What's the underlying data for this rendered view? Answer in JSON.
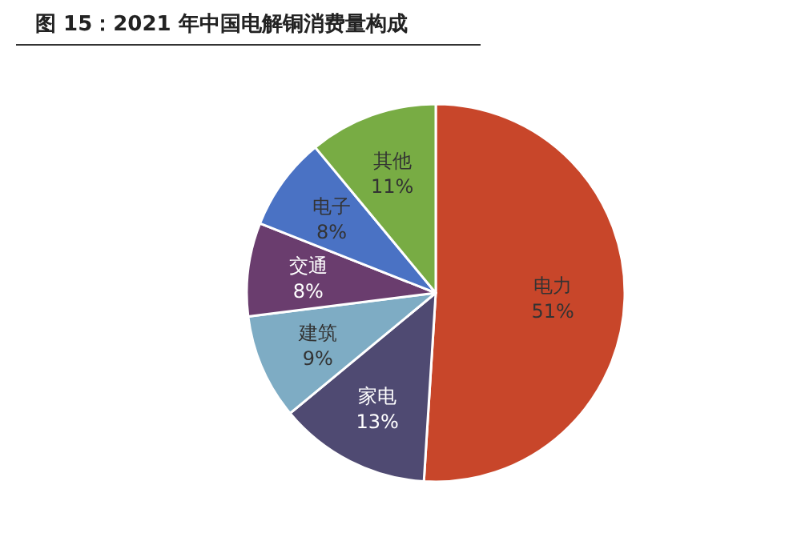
{
  "chart_data": {
    "type": "pie",
    "title": "图 15：2021 年中国电解铜消费量构成",
    "categories": [
      "电力",
      "家电",
      "建筑",
      "交通",
      "电子",
      "其他"
    ],
    "values": [
      51,
      13,
      9,
      8,
      8,
      11
    ],
    "colors": [
      "#c8462a",
      "#4f4a72",
      "#7eacc4",
      "#6a3d6e",
      "#4a72c4",
      "#78ac44"
    ],
    "value_labels": [
      "51%",
      "13%",
      "9%",
      "8%",
      "8%",
      "11%"
    ]
  }
}
